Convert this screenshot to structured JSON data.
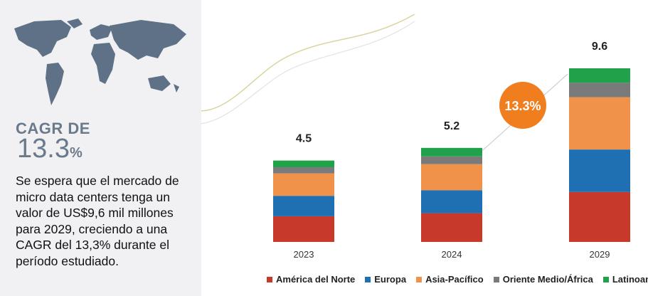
{
  "left": {
    "cagr_label": "CAGR DE",
    "cagr_number": "13.3",
    "cagr_pct": "%",
    "description": "Se espera que el mercado de micro data centers tenga un valor de US$9,6 mil millones para 2029, creciendo a una CAGR del 13,3% durante el período estudiado."
  },
  "colors": {
    "america": "#c7392b",
    "europa": "#1f6fb3",
    "asia": "#f0924a",
    "oriente": "#7a7a7a",
    "latam": "#21a24a",
    "badge": "#f07d1e",
    "map": "#5e7186"
  },
  "chart_data": {
    "type": "bar",
    "stacked": true,
    "categories": [
      "2023",
      "2024",
      "2029"
    ],
    "totals": [
      4.5,
      5.2,
      9.6
    ],
    "total_labels": [
      "4.5",
      "5.2",
      "9.6"
    ],
    "series": [
      {
        "name": "América del Norte",
        "values": [
          1.42,
          1.59,
          2.76
        ]
      },
      {
        "name": "Europa",
        "values": [
          1.13,
          1.27,
          2.35
        ]
      },
      {
        "name": "Asia-Pacífico",
        "values": [
          1.24,
          1.44,
          2.89
        ]
      },
      {
        "name": "Oriente Medio/África",
        "values": [
          0.34,
          0.43,
          0.8
        ]
      },
      {
        "name": "Latinoamérica",
        "values": [
          0.37,
          0.47,
          0.8
        ]
      }
    ],
    "annotation": "13.3%",
    "ylim": [
      0,
      10
    ],
    "grid": false,
    "legend": "bottom"
  }
}
